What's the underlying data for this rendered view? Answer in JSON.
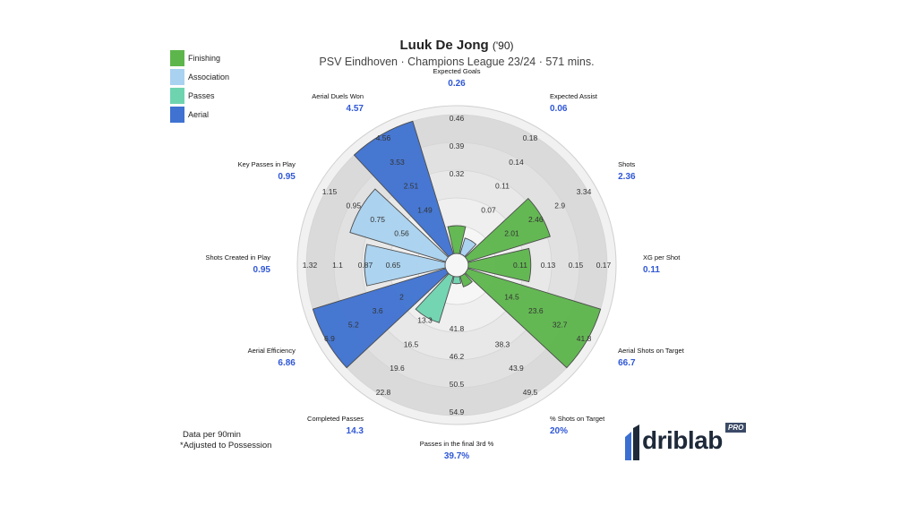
{
  "header": {
    "player": "Luuk De Jong",
    "minutes_note": "('90)",
    "subtitle": "PSV Eindhoven · Champions League 23/24 · 571 mins."
  },
  "legend": [
    {
      "label": "Finishing",
      "color": "#5db64c"
    },
    {
      "label": "Association",
      "color": "#a9d2f0"
    },
    {
      "label": "Passes",
      "color": "#6ed4b0"
    },
    {
      "label": "Aerial",
      "color": "#3f72d1"
    }
  ],
  "footnote": {
    "line1": "Data per 90min",
    "line2": "*Adjusted to Possession"
  },
  "logo": {
    "text": "driblab",
    "badge": "PRO"
  },
  "chart_data": {
    "type": "radial-bar",
    "rings": 5,
    "metrics": [
      {
        "label": "Expected Goals",
        "value_label": "0.26",
        "value": 0.26,
        "category": "Finishing",
        "ticks": [
          "0.32",
          "0.39",
          "0.46"
        ]
      },
      {
        "label": "Expected Assist",
        "value_label": "0.06",
        "value": 0.06,
        "category": "Association",
        "ticks": [
          "0.07",
          "0.11",
          "0.14",
          "0.18"
        ]
      },
      {
        "label": "Shots",
        "value_label": "2.36",
        "value": 2.36,
        "category": "Finishing",
        "ticks": [
          "2.01",
          "2.46",
          "2.9",
          "3.34"
        ]
      },
      {
        "label": "XG per Shot",
        "value_label": "0.11",
        "value": 0.11,
        "category": "Finishing",
        "ticks": [
          "0.11",
          "0.13",
          "0.15",
          "0.17"
        ]
      },
      {
        "label": "Aerial Shots on Target",
        "value_label": "66.7",
        "value": 66.7,
        "category": "Finishing",
        "ticks": [
          "14.5",
          "23.6",
          "32.7",
          "41.8"
        ]
      },
      {
        "label": "% Shots on Target",
        "value_label": "20%",
        "value": 20,
        "category": "Finishing",
        "ticks": [
          "38.3",
          "43.9",
          "49.5"
        ]
      },
      {
        "label": "Passes in the final 3rd %",
        "value_label": "39.7%",
        "value": 39.7,
        "category": "Passes",
        "ticks": [
          "41.8",
          "46.2",
          "50.5",
          "54.9"
        ]
      },
      {
        "label": "Completed Passes",
        "value_label": "14.3",
        "value": 14.3,
        "category": "Passes",
        "ticks": [
          "13.3",
          "16.5",
          "19.6",
          "22.8"
        ]
      },
      {
        "label": "Aerial Efficiency",
        "value_label": "6.86",
        "value": 6.86,
        "category": "Aerial",
        "ticks": [
          "2",
          "3.6",
          "5.2",
          "6.9"
        ]
      },
      {
        "label": "Shots Created in Play",
        "value_label": "0.95",
        "value": 0.95,
        "category": "Association",
        "ticks": [
          "0.65",
          "0.87",
          "1.1",
          "1.32"
        ]
      },
      {
        "label": "Key Passes in Play",
        "value_label": "0.95",
        "value": 0.95,
        "category": "Association",
        "ticks": [
          "0.56",
          "0.75",
          "0.95",
          "1.15"
        ]
      },
      {
        "label": "Aerial Duels Won",
        "value_label": "4.57",
        "value": 4.57,
        "category": "Aerial",
        "ticks": [
          "1.49",
          "2.51",
          "3.53",
          "4.56"
        ]
      }
    ],
    "percentile_ring": [
      0.2,
      0.12,
      0.62,
      0.45,
      1.0,
      0.08,
      0.05,
      0.35,
      1.0,
      0.58,
      0.72,
      1.0
    ]
  }
}
